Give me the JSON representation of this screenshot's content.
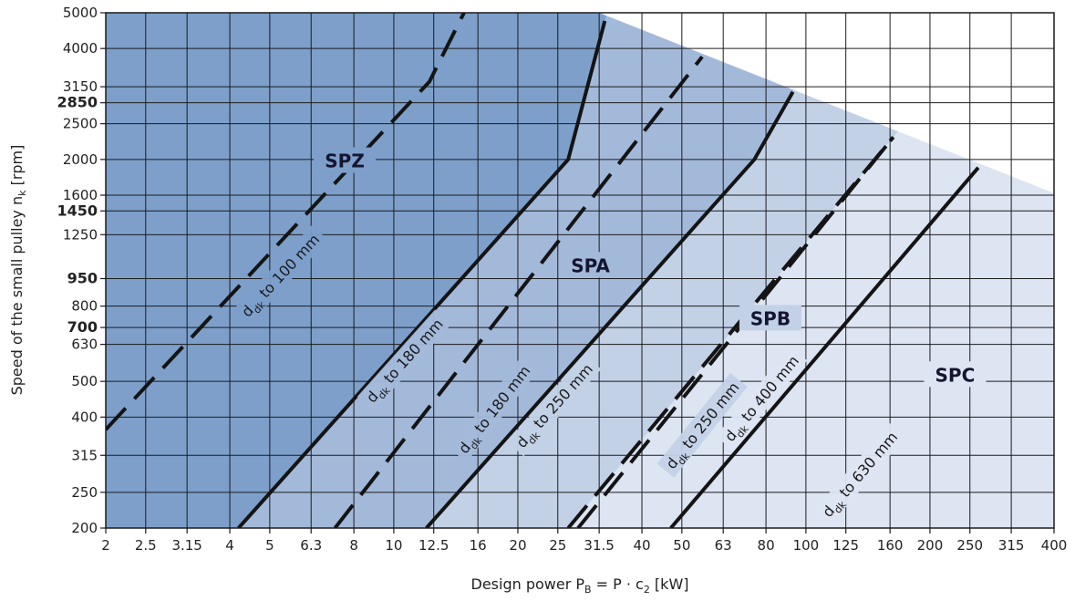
{
  "chart_data": {
    "type": "line",
    "xlabel": {
      "pre": "Design power P",
      "sub": "B",
      "post": " = P · c",
      "sub2": "2",
      "tail": " [kW]"
    },
    "ylabel": {
      "pre": "Speed of the small pulley n",
      "sub": "k",
      "post": " [rpm]"
    },
    "x_scale": "log",
    "y_scale": "log",
    "xlim": [
      2,
      400
    ],
    "ylim": [
      200,
      5000
    ],
    "grid": true,
    "x_ticks": [
      2,
      2.5,
      3.15,
      4,
      5,
      6.3,
      8,
      10,
      12.5,
      16,
      20,
      25,
      31.5,
      40,
      50,
      63,
      80,
      100,
      125,
      160,
      200,
      250,
      315,
      400
    ],
    "x_tick_labels": [
      "2",
      "2.5",
      "3.15",
      "4",
      "5",
      "6.3",
      "8",
      "10",
      "12.5",
      "16",
      "20",
      "25",
      "31.5",
      "40",
      "50",
      "63",
      "80",
      "100",
      "125",
      "160",
      "200",
      "250",
      "315",
      "400"
    ],
    "y_ticks": [
      200,
      250,
      315,
      400,
      500,
      630,
      700,
      800,
      950,
      1250,
      1450,
      1600,
      2000,
      2500,
      2850,
      3150,
      4000,
      5000
    ],
    "y_tick_labels": [
      "200",
      "250",
      "315",
      "400",
      "500",
      "630",
      "700",
      "800",
      "950",
      "1250",
      "1450",
      "1600",
      "2000",
      "2500",
      "2850",
      "3150",
      "4000",
      "5000"
    ],
    "y_bold_ticks": [
      700,
      950,
      1450,
      2850
    ],
    "regions": [
      {
        "name": "SPZ",
        "color": "#7d9fca",
        "label_at": [
          7.6,
          1980
        ]
      },
      {
        "name": "SPA",
        "color": "#a3b9da",
        "label_at": [
          30,
          1030
        ]
      },
      {
        "name": "SPB",
        "color": "#c3d1e7",
        "label_at": [
          82,
          740
        ]
      },
      {
        "name": "SPC",
        "color": "#dde5f2",
        "label_at": [
          230,
          520
        ]
      }
    ],
    "region_bounds": [
      {
        "name": "SPZ",
        "from_series": null,
        "to_series": "dd_180_solid"
      },
      {
        "name": "SPA",
        "from_series": "dd_180_solid",
        "to_series": "dd_250_solid"
      },
      {
        "name": "SPB",
        "from_series": "dd_250_solid",
        "to_series": "dd_400_dashed"
      }
    ],
    "envelope": [
      [
        31.5,
        5000
      ],
      [
        400,
        1620
      ]
    ],
    "series": [
      {
        "id": "dd_100",
        "label": {
          "d": "d",
          "sub": "dk",
          "text": " to 100 mm"
        },
        "style": "dashed",
        "points": [
          [
            2,
            370
          ],
          [
            12.2,
            3250
          ],
          [
            14.8,
            5000
          ]
        ],
        "label_at": [
          5.3,
          970
        ]
      },
      {
        "id": "dd_180_solid",
        "label": {
          "d": "d",
          "sub": "dk",
          "text": " to 180 mm"
        },
        "style": "solid",
        "points": [
          [
            4.2,
            200
          ],
          [
            26.5,
            2000
          ],
          [
            32.5,
            4750
          ]
        ],
        "label_at": [
          10.6,
          570
        ]
      },
      {
        "id": "dd_180_dashed",
        "label": {
          "d": "d",
          "sub": "dk",
          "text": " to 180 mm"
        },
        "style": "dashed",
        "points": [
          [
            7.2,
            200
          ],
          [
            56,
            3800
          ]
        ],
        "label_at": [
          17.5,
          420
        ]
      },
      {
        "id": "dd_250_solid",
        "label": {
          "d": "d",
          "sub": "dk",
          "text": " to 250 mm"
        },
        "style": "solid",
        "points": [
          [
            12,
            200
          ],
          [
            75,
            2000
          ],
          [
            93,
            3050
          ]
        ],
        "label_at": [
          24.5,
          430
        ]
      },
      {
        "id": "dd_250_dashed",
        "label": {
          "d": "d",
          "sub": "dk",
          "text": " to 250 mm"
        },
        "style": "dashed",
        "points": [
          [
            28,
            200
          ],
          [
            163,
            2300
          ]
        ],
        "label_at": [
          56,
          380
        ]
      },
      {
        "id": "dd_400_dashed",
        "label": {
          "d": "d",
          "sub": "dk",
          "text": " to 400 mm"
        },
        "style": "dashed",
        "points": [
          [
            26.5,
            200
          ],
          [
            163,
            2300
          ]
        ],
        "label_at": [
          78,
          450
        ]
      },
      {
        "id": "dd_630",
        "label": {
          "d": "d",
          "sub": "dk",
          "text": " to 630 mm"
        },
        "style": "solid",
        "points": [
          [
            47,
            200
          ],
          [
            262,
            1900
          ]
        ],
        "label_at": [
          135,
          280
        ]
      }
    ]
  }
}
